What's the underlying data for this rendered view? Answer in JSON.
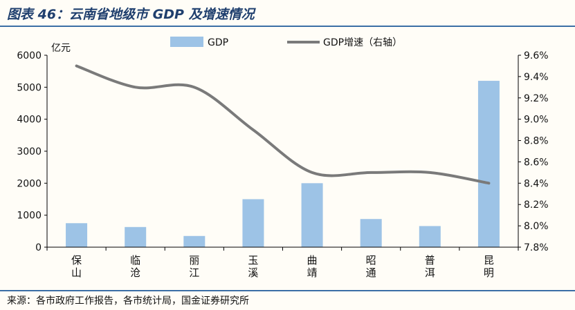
{
  "title": "图表 46：云南省地级市 GDP 及增速情况",
  "source": "来源：各市政府工作报告，各市统计局，国金证券研究所",
  "colors": {
    "bar": "#9dc3e6",
    "line": "#7a7a7a",
    "rule": "#3a6ea5",
    "title": "#1f3f6e"
  },
  "chart_data": {
    "type": "bar",
    "categories": [
      "保山",
      "临沧",
      "丽江",
      "玉溪",
      "曲靖",
      "昭通",
      "普洱",
      "昆明"
    ],
    "category_lines": [
      [
        "保",
        "山"
      ],
      [
        "临",
        "沧"
      ],
      [
        "丽",
        "江"
      ],
      [
        "玉",
        "溪"
      ],
      [
        "曲",
        "靖"
      ],
      [
        "昭",
        "通"
      ],
      [
        "普",
        "洱"
      ],
      [
        "昆",
        "明"
      ]
    ],
    "series": [
      {
        "name": "GDP",
        "type": "bar",
        "axis": "left",
        "values": [
          750,
          630,
          350,
          1500,
          2000,
          880,
          660,
          5200
        ]
      },
      {
        "name": "GDP增速（右轴）",
        "type": "line",
        "axis": "right",
        "values": [
          9.5,
          9.3,
          9.3,
          8.9,
          8.5,
          8.5,
          8.5,
          8.4
        ]
      }
    ],
    "y_left": {
      "unit": "亿元",
      "min": 0,
      "max": 6000,
      "ticks": [
        "0",
        "1000",
        "2000",
        "3000",
        "4000",
        "5000",
        "6000"
      ]
    },
    "y_right": {
      "min": 7.8,
      "max": 9.6,
      "ticks": [
        "7.8%",
        "8.0%",
        "8.2%",
        "8.4%",
        "8.6%",
        "8.8%",
        "9.0%",
        "9.2%",
        "9.4%",
        "9.6%"
      ]
    },
    "grid": false,
    "legend_position": "top"
  }
}
